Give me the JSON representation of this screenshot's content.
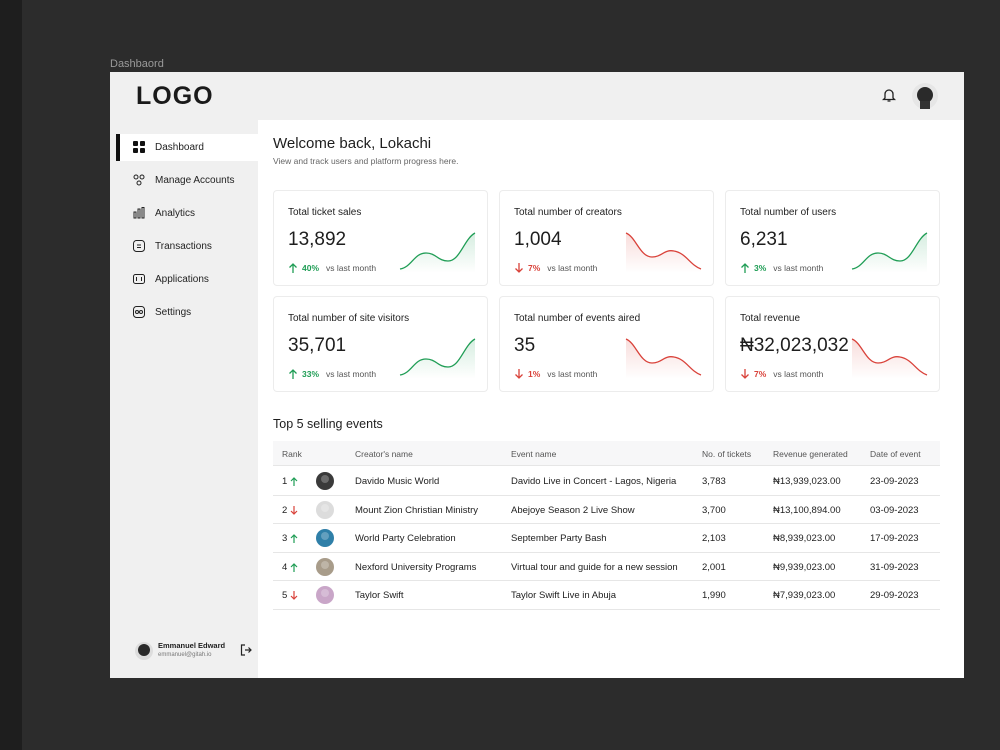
{
  "frame_label": "Dashbaord",
  "header": {
    "logo": "LOGO"
  },
  "sidebar": {
    "nav": [
      "Dashboard",
      "Manage Accounts",
      "Analytics",
      "Transactions",
      "Applications",
      "Settings"
    ],
    "user": {
      "name": "Emmanuel Edward",
      "email": "emmanuel@gitah.io"
    }
  },
  "main": {
    "title": "Welcome back, Lokachi",
    "subtitle": "View and track users and platform progress here.",
    "stats": [
      {
        "label": "Total ticket sales",
        "value": "13,892",
        "change": "40%",
        "note": "vs last month",
        "trend": "up"
      },
      {
        "label": "Total number of creators",
        "value": "1,004",
        "change": "7%",
        "note": "vs last month",
        "trend": "down"
      },
      {
        "label": "Total number of users",
        "value": "6,231",
        "change": "3%",
        "note": "vs last month",
        "trend": "up"
      },
      {
        "label": "Total number of site visitors",
        "value": "35,701",
        "change": "33%",
        "note": "vs last month",
        "trend": "up"
      },
      {
        "label": "Total number of events aired",
        "value": "35",
        "change": "1%",
        "note": "vs last month",
        "trend": "down"
      },
      {
        "label": "Total revenue",
        "value": "₦32,023,032",
        "change": "7%",
        "note": "vs last month",
        "trend": "down"
      }
    ],
    "table": {
      "title": "Top 5 selling events",
      "columns": [
        "Rank",
        "Creator's name",
        "Event name",
        "No. of tickets",
        "Revenue generated",
        "Date of event"
      ],
      "rows": [
        {
          "rank": "1",
          "trend": "up",
          "creator": "Davido Music World",
          "event": "Davido Live in Concert - Lagos, Nigeria",
          "tickets": "3,783",
          "revenue": "₦13,939,023.00",
          "date": "23-09-2023",
          "avatar": "#3a3a3a"
        },
        {
          "rank": "2",
          "trend": "down",
          "creator": "Mount Zion Christian Ministry",
          "event": "Abejoye Season 2 Live Show",
          "tickets": "3,700",
          "revenue": "₦13,100,894.00",
          "date": "03-09-2023",
          "avatar": "#dcdcdc"
        },
        {
          "rank": "3",
          "trend": "up",
          "creator": "World Party Celebration",
          "event": "September Party Bash",
          "tickets": "2,103",
          "revenue": "₦8,939,023.00",
          "date": "17-09-2023",
          "avatar": "#2f7fa8"
        },
        {
          "rank": "4",
          "trend": "up",
          "creator": "Nexford University Programs",
          "event": "Virtual tour and guide for a new session",
          "tickets": "2,001",
          "revenue": "₦9,939,023.00",
          "date": "31-09-2023",
          "avatar": "#a89c8a"
        },
        {
          "rank": "5",
          "trend": "down",
          "creator": "Taylor Swift",
          "event": "Taylor Swift Live in Abuja",
          "tickets": "1,990",
          "revenue": "₦7,939,023.00",
          "date": "29-09-2023",
          "avatar": "#c9a6c8"
        }
      ]
    }
  }
}
